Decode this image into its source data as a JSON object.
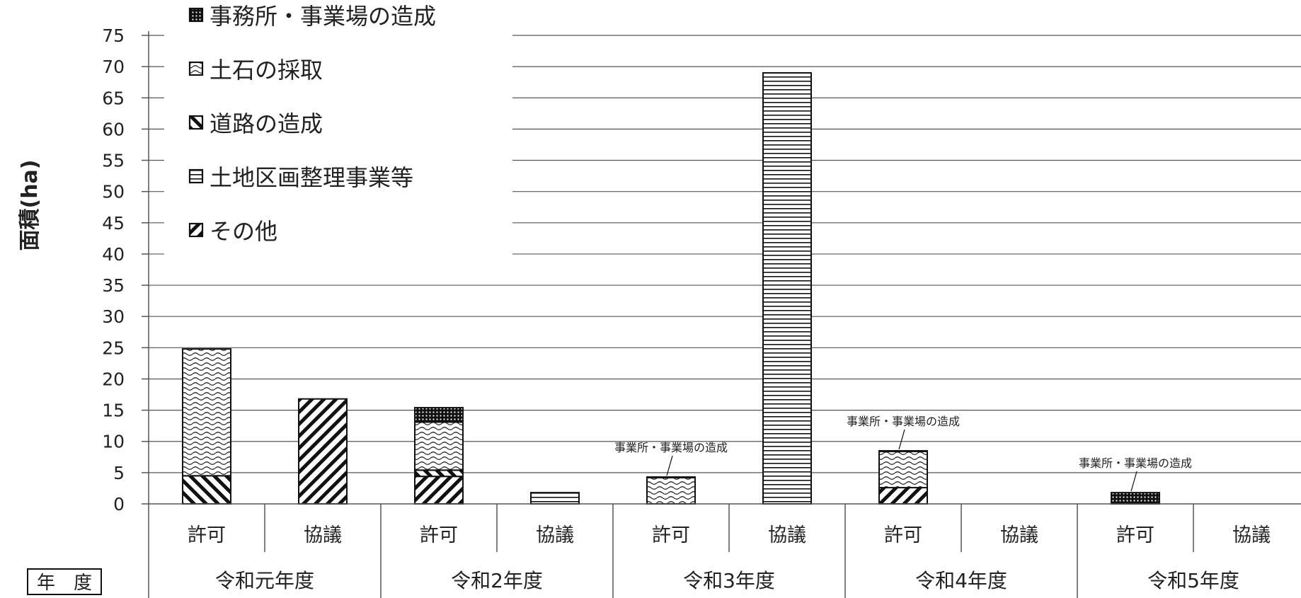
{
  "chart_data": {
    "type": "bar",
    "stacked": true,
    "ylabel": "面積(ha)",
    "ylim": [
      0,
      75
    ],
    "ytick_step": 5,
    "grid": true,
    "legend_position": "top-left",
    "corner_label": "年　度",
    "groups": [
      "令和元年度",
      "令和2年度",
      "令和3年度",
      "令和4年度",
      "令和5年度"
    ],
    "subcategories": [
      "許可",
      "協議"
    ],
    "categories": [
      "令和元年度 許可",
      "令和元年度 協議",
      "令和2年度 許可",
      "令和2年度 協議",
      "令和3年度 許可",
      "令和3年度 協議",
      "令和4年度 許可",
      "令和4年度 協議",
      "令和5年度 許可",
      "令和5年度 協議"
    ],
    "series": [
      {
        "name": "その他",
        "pattern": "diag-ne",
        "values": [
          0,
          16.8,
          4.4,
          0,
          0,
          0,
          2.6,
          0,
          0,
          0
        ]
      },
      {
        "name": "土地区画整理事業等",
        "pattern": "hlines",
        "values": [
          0,
          0,
          0,
          1.8,
          0,
          69,
          0,
          0,
          0,
          0
        ]
      },
      {
        "name": "道路の造成",
        "pattern": "diag-nw",
        "values": [
          4.5,
          0,
          1.0,
          0,
          0,
          0,
          0,
          0,
          0,
          0
        ]
      },
      {
        "name": "土石の採取",
        "pattern": "wave",
        "values": [
          20.3,
          0,
          7.7,
          0,
          4.2,
          0,
          5.8,
          0,
          0,
          0
        ]
      },
      {
        "name": "事務所・事業場の造成",
        "pattern": "dots",
        "values": [
          0,
          0,
          2.3,
          0,
          0.1,
          0,
          0.1,
          0,
          1.8,
          0
        ]
      }
    ],
    "legend_order": [
      "事務所・事業場の造成",
      "土石の採取",
      "道路の造成",
      "土地区画整理事業等",
      "その他"
    ],
    "annotations": [
      {
        "text": "事業所・事業場の造成",
        "category_index": 4
      },
      {
        "text": "事業所・事業場の造成",
        "category_index": 6
      },
      {
        "text": "事業所・事業場の造成",
        "category_index": 8
      }
    ],
    "colors": {
      "ink": "#111111",
      "grid": "#555555",
      "background": "#ffffff"
    }
  }
}
